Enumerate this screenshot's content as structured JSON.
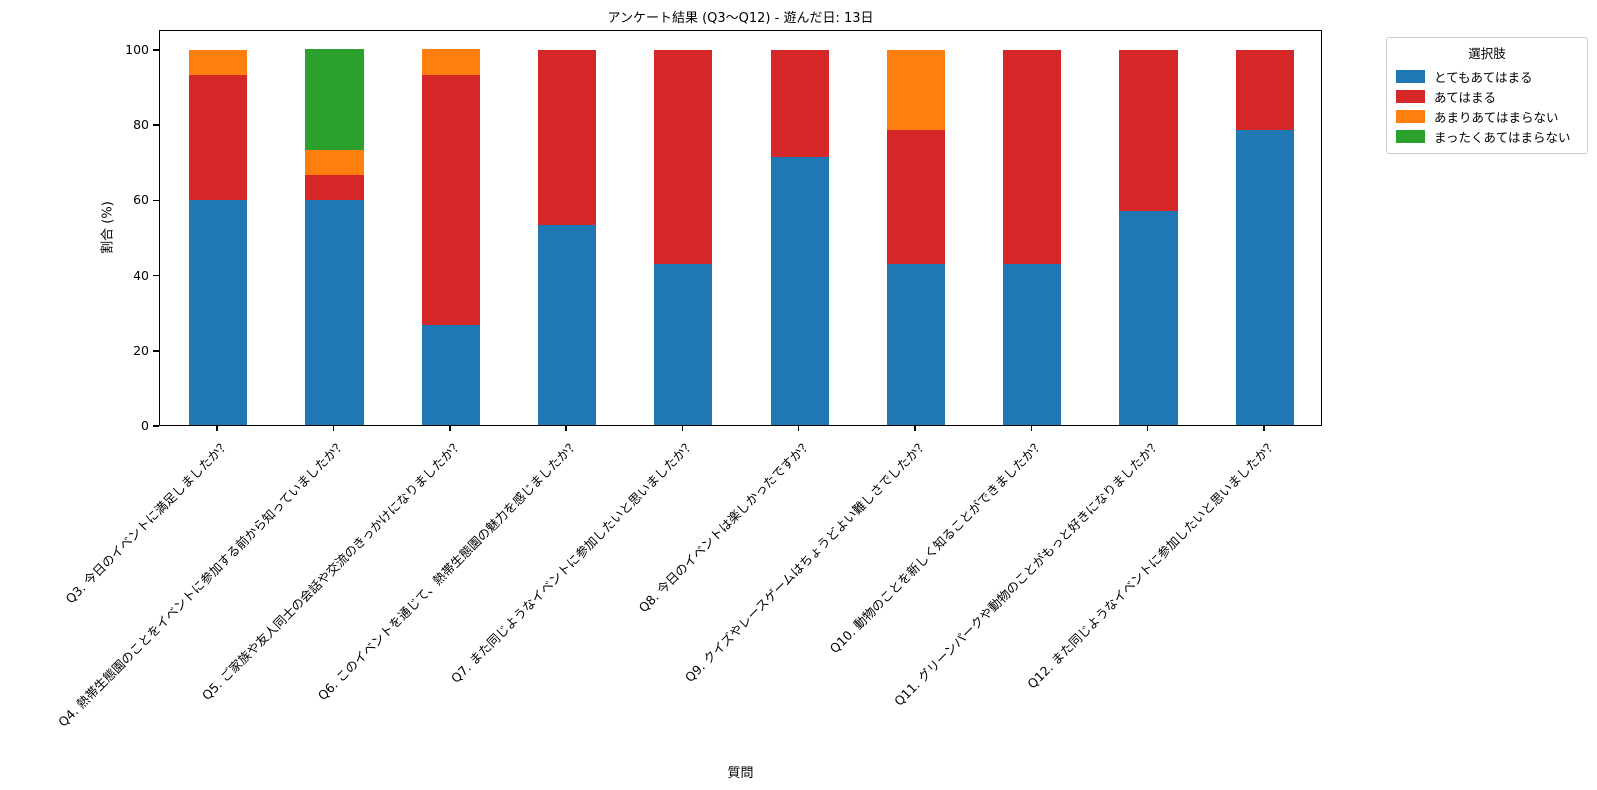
{
  "chart_data": {
    "type": "bar",
    "stacked": true,
    "percent_stacked": true,
    "title": "アンケート結果 (Q3〜Q12) - 遊んだ日: 13日",
    "xlabel": "質問",
    "ylabel": "割合 (%)",
    "ylim": [
      0,
      105
    ],
    "yticks": [
      0,
      20,
      40,
      60,
      80,
      100
    ],
    "grid": false,
    "legend_title": "選択肢",
    "legend_position": "outside upper right",
    "categories": [
      "Q3. 今日のイベントに満足しましたか？",
      "Q4. 熱帯生態園のことをイベントに参加する前から知っていましたか？",
      "Q5. ご家族や友人同士の会話や交流のきっかけになりましたか？",
      "Q6. このイベントを通じて、熱帯生態園の魅力を感じましたか？",
      "Q7. また同じようなイベントに参加したいと思いましたか？",
      "Q8. 今日のイベントは楽しかったですか？",
      "Q9. クイズやレースゲームはちょうどよい難しさでしたか？",
      "Q10. 動物のことを新しく知ることができましたか？",
      "Q11. グリーンパークや動物のことがもっと好きになりましたか？",
      "Q12. また同じようなイベントに参加したいと思いましたか？"
    ],
    "series": [
      {
        "name": "とてもあてはまる",
        "color": "#1f77b4",
        "values": [
          60.0,
          60.0,
          26.67,
          53.33,
          42.86,
          71.43,
          42.86,
          42.86,
          57.14,
          78.57
        ]
      },
      {
        "name": "あてはまる",
        "color": "#d62728",
        "values": [
          33.33,
          6.67,
          66.67,
          46.67,
          57.14,
          28.57,
          35.71,
          57.14,
          42.86,
          21.43
        ]
      },
      {
        "name": "あまりあてはまらない",
        "color": "#ff7f0e",
        "values": [
          6.67,
          6.67,
          6.67,
          0,
          0,
          0,
          21.43,
          0,
          0,
          0
        ]
      },
      {
        "name": "まったくあてはまらない",
        "color": "#2ca02c",
        "values": [
          0,
          26.67,
          0,
          0,
          0,
          0,
          0,
          0,
          0,
          0
        ]
      }
    ]
  }
}
